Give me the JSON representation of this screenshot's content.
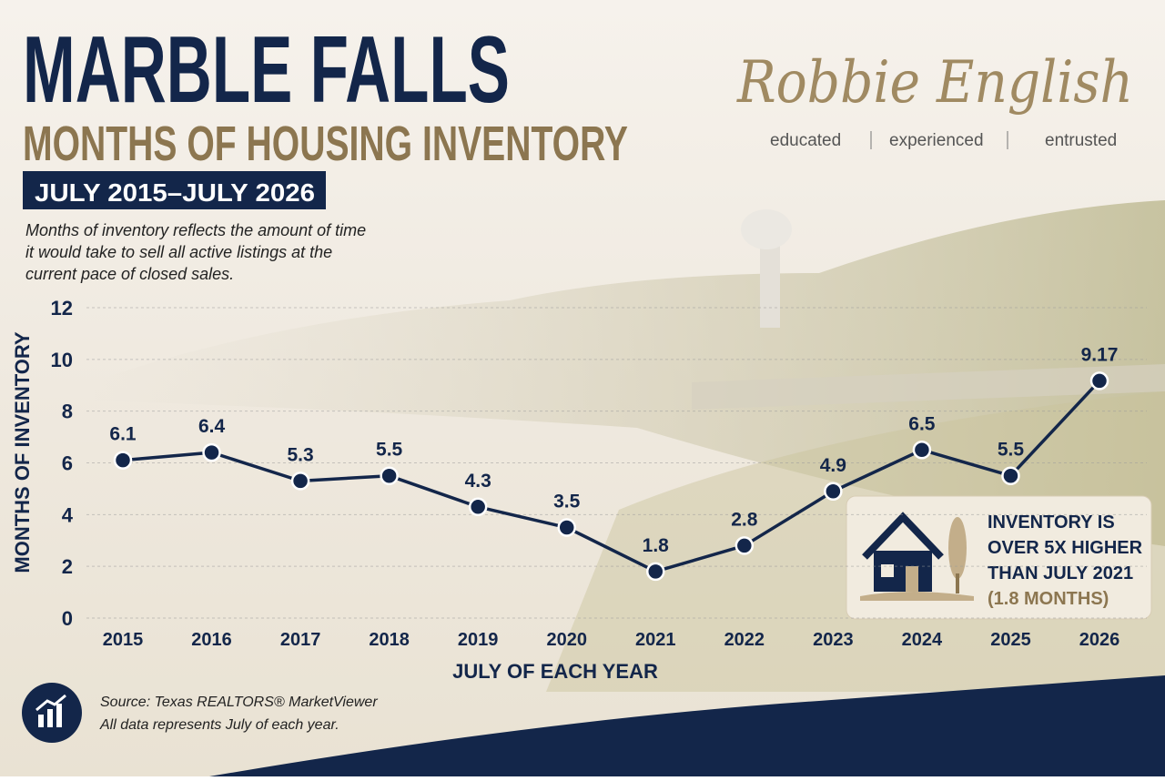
{
  "chart_data": {
    "type": "line",
    "title": "MARBLE FALLS",
    "subtitle": "MONTHS OF HOUSING INVENTORY",
    "date_range": "JULY 2015–JULY 2026",
    "description_lines": [
      "Months of inventory reflects the amount of time",
      "it would take to sell all active listings at the",
      "current pace of closed sales."
    ],
    "y_label": "MONTHS OF INVENTORY",
    "x_label": "JULY OF EACH YEAR",
    "categories": [
      "2015",
      "2016",
      "2017",
      "2018",
      "2019",
      "2020",
      "2021",
      "2022",
      "2023",
      "2024",
      "2025",
      "2026"
    ],
    "values": [
      6.1,
      6.4,
      5.3,
      5.5,
      4.3,
      3.5,
      1.8,
      2.8,
      4.9,
      6.5,
      5.5,
      9.17
    ],
    "color": "#13264a",
    "ylim": [
      0,
      12
    ],
    "yticks": [
      0,
      2,
      4,
      6,
      8,
      10,
      12
    ],
    "grid": true,
    "callout_lines": [
      "INVENTORY IS",
      "OVER 5X HIGHER",
      "THAN JULY 2021",
      "(1.8 MONTHS)"
    ],
    "brand": {
      "name": "Robbie English",
      "tagline": [
        "educated",
        "experienced",
        "entrusted"
      ]
    },
    "source_lines": [
      "Source: Texas REALTORS® MarketViewer",
      "All data represents July of each year."
    ]
  }
}
